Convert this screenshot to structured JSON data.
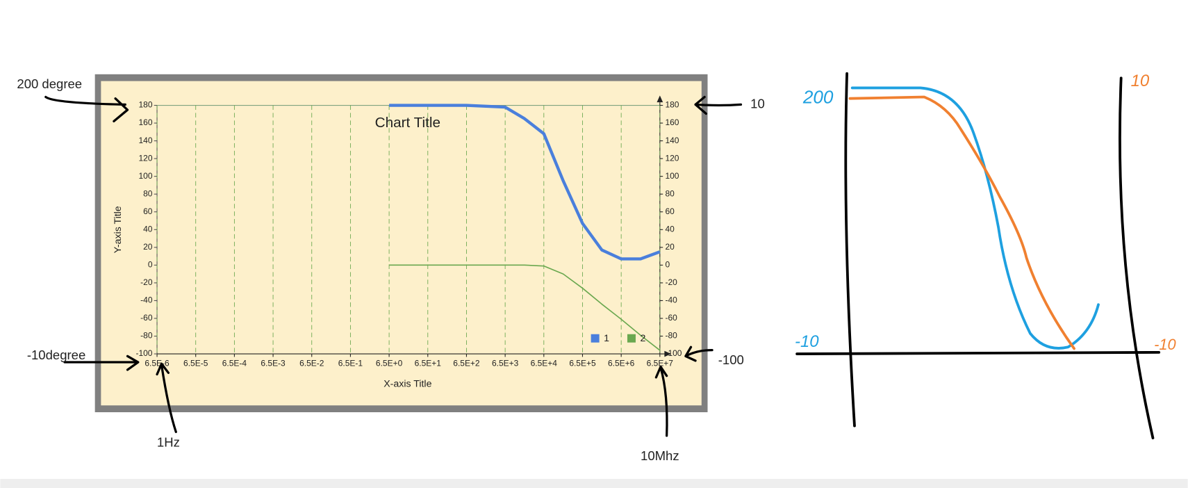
{
  "chart_data": {
    "type": "line",
    "title": "Chart Title",
    "x_axis_title": "X-axis Title",
    "y_axis_title": "Y-axis Title",
    "x": [
      6.5,
      65,
      650,
      6500,
      20555,
      65000,
      205550,
      650000,
      2055500,
      6500000,
      20555000,
      65000000
    ],
    "series": [
      {
        "name": "1",
        "color": "#4a7fdc",
        "values": [
          180,
          180,
          180,
          178,
          165,
          148,
          95,
          47,
          17,
          7,
          7,
          15
        ]
      },
      {
        "name": "2",
        "color": "#6aa84f",
        "axis": "y2",
        "values": [
          0,
          0,
          0,
          0,
          0,
          -1,
          -10,
          -26,
          -44,
          -61,
          -79,
          -96
        ]
      }
    ],
    "xlog": true,
    "xlim": [
      6.5e-06,
      65000000
    ],
    "xticks": [
      {
        "value": 6.5e-06,
        "label": "6.5E-6"
      },
      {
        "value": 6.5e-05,
        "label": "6.5E-5"
      },
      {
        "value": 0.00065,
        "label": "6.5E-4"
      },
      {
        "value": 0.0065,
        "label": "6.5E-3"
      },
      {
        "value": 0.065,
        "label": "6.5E-2"
      },
      {
        "value": 0.65,
        "label": "6.5E-1"
      },
      {
        "value": 6.5,
        "label": "6.5E+0"
      },
      {
        "value": 65,
        "label": "6.5E+1"
      },
      {
        "value": 650,
        "label": "6.5E+2"
      },
      {
        "value": 6500,
        "label": "6.5E+3"
      },
      {
        "value": 65000,
        "label": "6.5E+4"
      },
      {
        "value": 650000,
        "label": "6.5E+5"
      },
      {
        "value": 6500000,
        "label": "6.5E+6"
      },
      {
        "value": 65000000,
        "label": "6.5E+7"
      }
    ],
    "ylim": [
      -100,
      180
    ],
    "yticks": [
      -100,
      -80,
      -60,
      -40,
      -20,
      0,
      20,
      40,
      60,
      80,
      100,
      120,
      140,
      160,
      180
    ],
    "y2lim": [
      -100,
      180
    ],
    "y2ticks": [
      -100,
      -80,
      -60,
      -40,
      -20,
      0,
      20,
      40,
      60,
      80,
      100,
      120,
      140,
      160,
      180
    ],
    "x_grid": true,
    "legend": "lower right"
  },
  "annotations": [
    "200 degree",
    "10",
    "-10degree",
    "-100",
    "1Hz",
    "10Mhz"
  ],
  "sketch": {
    "labels": [
      "200",
      "10",
      "-10",
      "-10"
    ]
  }
}
